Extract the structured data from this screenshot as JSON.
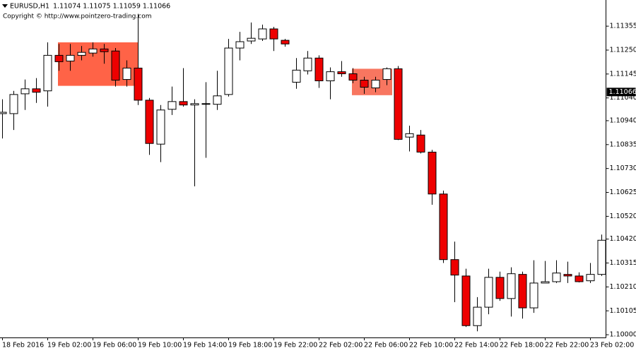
{
  "chart_data": {
    "type": "candlestick",
    "title": "EURUSD,H1",
    "subtitle": "1.11074 1.11075 1.11059 1.11066",
    "annotation": "Copyright © http://www.pointzero-trading.com",
    "categories": [
      "18 Feb 2016",
      null,
      null,
      null,
      "19 Feb 02:00",
      null,
      null,
      null,
      "19 Feb 06:00",
      null,
      null,
      null,
      "19 Feb 10:00",
      null,
      null,
      null,
      "19 Feb 14:00",
      null,
      null,
      null,
      "19 Feb 18:00",
      null,
      null,
      null,
      "19 Feb 22:00",
      null,
      null,
      null,
      "22 Feb 02:00",
      null,
      null,
      null,
      "22 Feb 06:00",
      null,
      null,
      null,
      "22 Feb 10:00",
      null,
      null,
      null,
      "22 Feb 14:00",
      null,
      null,
      null,
      "22 Feb 18:00",
      null,
      null,
      null,
      "22 Feb 22:00",
      null,
      null,
      null,
      "23 Feb 02:00",
      null
    ],
    "open": [
      1.10971,
      1.10971,
      1.11058,
      1.1108,
      1.11071,
      1.11227,
      1.11202,
      1.11227,
      1.11237,
      1.11255,
      1.11246,
      1.11121,
      1.11171,
      1.1103,
      1.10837,
      1.1099,
      1.11024,
      1.11009,
      1.11015,
      1.11012,
      1.11055,
      1.11259,
      1.1129,
      1.11299,
      1.11343,
      1.11293,
      1.11109,
      1.11159,
      1.11215,
      1.11115,
      1.11155,
      1.11146,
      1.11118,
      1.11084,
      1.11121,
      1.11168,
      1.10868,
      1.10877,
      1.10802,
      1.10618,
      1.1033,
      1.10258,
      1.1004,
      1.10121,
      1.10252,
      1.10159,
      1.10265,
      1.10118,
      1.10227,
      1.10233,
      1.10265,
      1.10258,
      1.10237,
      1.10265
    ],
    "high": [
      1.11034,
      1.11071,
      1.11121,
      1.11127,
      1.11284,
      1.11277,
      1.11277,
      1.11268,
      1.11284,
      1.11277,
      1.11259,
      1.11205,
      1.11409,
      1.1104,
      1.11009,
      1.1109,
      1.11171,
      1.11034,
      1.11109,
      1.11159,
      1.11299,
      1.1133,
      1.11371,
      1.11362,
      1.11352,
      1.11299,
      1.11215,
      1.11246,
      1.11227,
      1.11174,
      1.11202,
      1.11171,
      1.11133,
      1.11133,
      1.11174,
      1.1118,
      1.10918,
      1.10899,
      1.10812,
      1.10633,
      1.10409,
      1.1029,
      1.10165,
      1.1029,
      1.10277,
      1.10296,
      1.10277,
      1.10327,
      1.10324,
      1.10327,
      1.10321,
      1.10274,
      1.10315,
      1.1044
    ],
    "low": [
      1.10862,
      1.10899,
      1.10987,
      1.11018,
      1.11002,
      1.11159,
      1.11159,
      1.11205,
      1.11221,
      1.1119,
      1.1109,
      1.1109,
      1.11009,
      1.1079,
      1.10758,
      1.10965,
      1.11002,
      1.10652,
      1.10777,
      1.10987,
      1.11046,
      1.11205,
      1.11277,
      1.1129,
      1.11246,
      1.11265,
      1.1108,
      1.11143,
      1.11084,
      1.11034,
      1.11133,
      1.11105,
      1.11058,
      1.11065,
      1.11096,
      1.10855,
      1.10805,
      1.10796,
      1.10571,
      1.10315,
      1.10143,
      1.10034,
      1.10015,
      1.1009,
      1.10149,
      1.1008,
      1.10071,
      1.10096,
      1.10227,
      1.10227,
      1.10227,
      1.1023,
      1.10227,
      1.10258
    ],
    "close": [
      1.10977,
      1.11055,
      1.1108,
      1.11065,
      1.11227,
      1.11199,
      1.11227,
      1.1124,
      1.11255,
      1.11243,
      1.11118,
      1.11171,
      1.1103,
      1.1084,
      1.10987,
      1.11024,
      1.11009,
      1.11015,
      1.11015,
      1.11049,
      1.11259,
      1.11287,
      1.11302,
      1.11343,
      1.11299,
      1.11277,
      1.11162,
      1.11215,
      1.11115,
      1.11155,
      1.11146,
      1.11118,
      1.11087,
      1.11118,
      1.11168,
      1.10858,
      1.10883,
      1.10802,
      1.10618,
      1.1033,
      1.10262,
      1.1004,
      1.10121,
      1.10252,
      1.10159,
      1.10268,
      1.10118,
      1.10227,
      1.10233,
      1.10271,
      1.10258,
      1.10233,
      1.10265,
      1.10415
    ],
    "up_color": "#ffffff",
    "down_color": "#ee0000",
    "outline_color": "#000000",
    "zones": [
      {
        "from": 5,
        "to": 12,
        "top": 1.11284,
        "bottom": 1.11093,
        "color": "#ff6347"
      },
      {
        "from": 31,
        "to": 34.5,
        "top": 1.11168,
        "bottom": 1.11052,
        "color": "#f87660"
      }
    ],
    "price_label": 1.11066,
    "ylim": [
      1.09988,
      1.1147
    ],
    "yticks": [
      1.11355,
      {
        "value": 1.1125,
        "label": "1.11250"
      },
      1.11145,
      {
        "value": 1.1104,
        "label": "1.11040"
      },
      {
        "value": 1.1094,
        "label": "1.10940"
      },
      1.10835,
      {
        "value": 1.1073,
        "label": "1.10730"
      },
      1.10625,
      {
        "value": 1.1052,
        "label": "1.10520"
      },
      {
        "value": 1.1042,
        "label": "1.10420"
      },
      1.10315,
      {
        "value": 1.1021,
        "label": "1.10210"
      },
      1.10105,
      {
        "value": 1.1,
        "label": "1.10000"
      }
    ],
    "grid": false
  }
}
